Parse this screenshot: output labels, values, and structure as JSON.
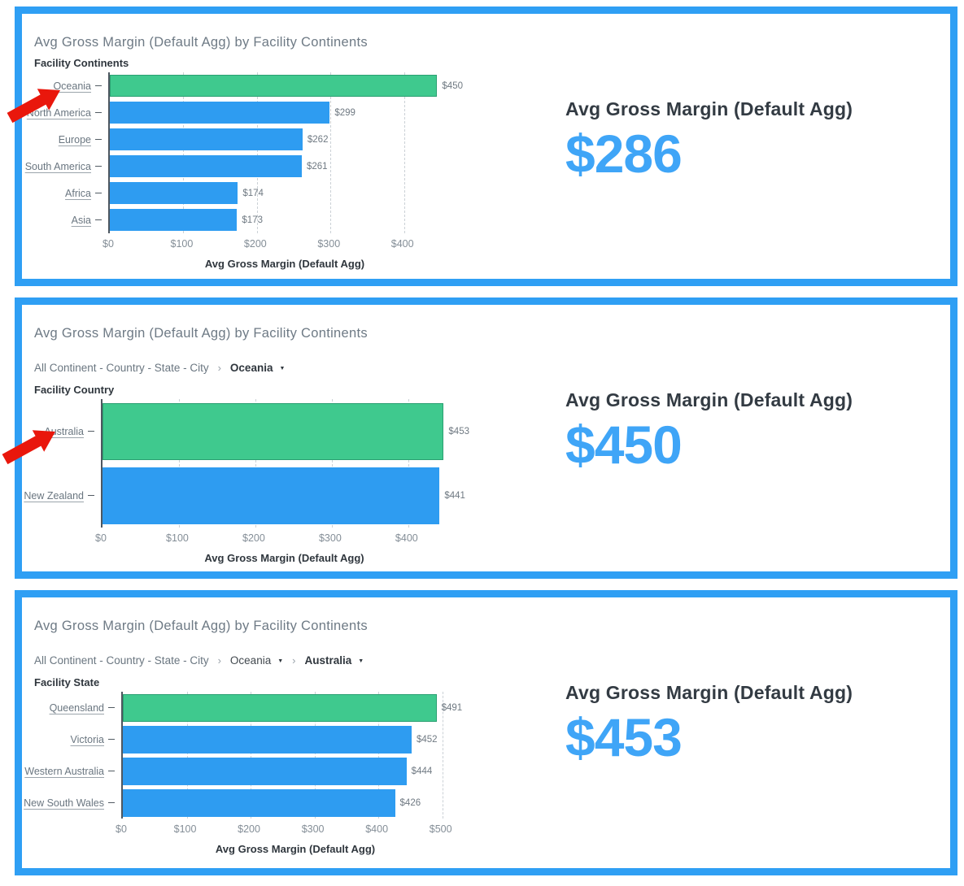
{
  "colors": {
    "panel_border": "#2F9FF4",
    "bar_blue": "#2E9CF1",
    "bar_highlight_green": "#3FC98E",
    "kpi_value_blue": "#3FA5F7",
    "annotation_arrow_red": "#E9170C"
  },
  "annotations": {
    "arrows": [
      {
        "name": "red-arrow",
        "points_to": "Oceania category label",
        "color": "#E9170C"
      },
      {
        "name": "red-arrow",
        "points_to": "Australia category label",
        "color": "#E9170C"
      }
    ]
  },
  "chart_data": [
    {
      "type": "bar",
      "orientation": "horizontal",
      "title": "Avg Gross Margin (Default Agg) by Facility Continents",
      "breadcrumb": null,
      "category_axis_label": "Facility Continents",
      "categories": [
        "Oceania",
        "North America",
        "Europe",
        "South America",
        "Africa",
        "Asia"
      ],
      "values": [
        450,
        299,
        262,
        261,
        174,
        173
      ],
      "value_labels": [
        "$450",
        "$299",
        "$262",
        "$261",
        "$174",
        "$173"
      ],
      "highlight_index": 0,
      "xlabel": "Avg Gross Margin (Default Agg)",
      "xticks": [
        "$0",
        "$100",
        "$200",
        "$300",
        "$400"
      ],
      "xtick_values": [
        0,
        100,
        200,
        300,
        400
      ],
      "xlim": [
        0,
        480
      ],
      "grid": true,
      "kpi": {
        "label": "Avg Gross Margin (Default Agg)",
        "value": "$286"
      }
    },
    {
      "type": "bar",
      "orientation": "horizontal",
      "title": "Avg Gross Margin (Default Agg) by Facility Continents",
      "breadcrumb": {
        "root": "All Continent - Country - State - City",
        "separator": "›",
        "items": [
          {
            "label": "Oceania",
            "bold": true
          }
        ]
      },
      "category_axis_label": "Facility Country",
      "categories": [
        "Australia",
        "New Zealand"
      ],
      "values": [
        453,
        441
      ],
      "value_labels": [
        "$453",
        "$441"
      ],
      "highlight_index": 0,
      "xlabel": "Avg Gross Margin (Default Agg)",
      "xticks": [
        "$0",
        "$100",
        "$200",
        "$300",
        "$400"
      ],
      "xtick_values": [
        0,
        100,
        200,
        300,
        400
      ],
      "xlim": [
        0,
        480
      ],
      "grid": true,
      "kpi": {
        "label": "Avg Gross Margin (Default Agg)",
        "value": "$450"
      }
    },
    {
      "type": "bar",
      "orientation": "horizontal",
      "title": "Avg Gross Margin (Default Agg) by Facility Continents",
      "breadcrumb": {
        "root": "All Continent - Country - State - City",
        "separator": "›",
        "items": [
          {
            "label": "Oceania",
            "bold": false
          },
          {
            "label": "Australia",
            "bold": true
          }
        ]
      },
      "category_axis_label": "Facility State",
      "categories": [
        "Queensland",
        "Victoria",
        "Western Australia",
        "New South Wales"
      ],
      "values": [
        491,
        452,
        444,
        426
      ],
      "value_labels": [
        "$491",
        "$452",
        "$444",
        "$426"
      ],
      "highlight_index": 0,
      "xlabel": "Avg Gross Margin (Default Agg)",
      "xticks": [
        "$0",
        "$100",
        "$200",
        "$300",
        "$400",
        "$500"
      ],
      "xtick_values": [
        0,
        100,
        200,
        300,
        400,
        500
      ],
      "xlim": [
        0,
        545
      ],
      "grid": true,
      "kpi": {
        "label": "Avg Gross Margin (Default Agg)",
        "value": "$453"
      }
    }
  ]
}
